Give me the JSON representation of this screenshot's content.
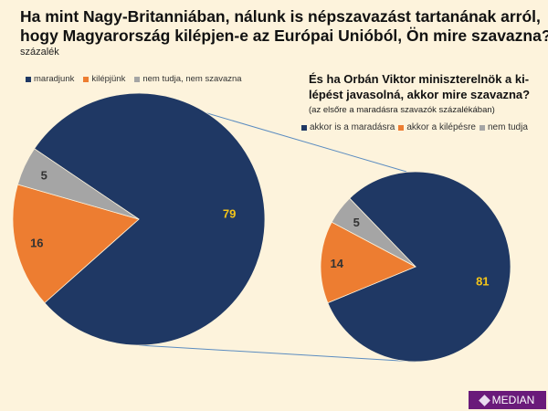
{
  "title_line1": "Ha mint Nagy-Britanniában, nálunk is népszavazást tartanának arról,",
  "title_line2": "hogy Magyarország kilépjen-e az Európai Unióból, Ön mire szavazna?",
  "subtitle": "százalék",
  "logo": "MEDIAN",
  "chart_data": [
    {
      "type": "pie",
      "title": "Ha mint Nagy-Britanniában, nálunk is népszavazást tartanának arról, hogy Magyarország kilépjen-e az Európai Unióból, Ön mire szavazna?",
      "unit": "százalék",
      "categories": [
        "maradjunk",
        "kilépjünk",
        "nem tudja, nem szavazna"
      ],
      "values": [
        79,
        16,
        5
      ],
      "colors": [
        "#1f3864",
        "#ed7d31",
        "#a5a5a5"
      ],
      "label_colors": [
        "#f5c518",
        "#333333",
        "#333333"
      ],
      "legend": "top-left"
    },
    {
      "type": "pie",
      "title_line1": "És ha Orbán Viktor miniszterelnök a ki-",
      "title_line2": "lépést javasolná, akkor mire szavazna?",
      "note": "(az elsőre a maradásra szavazók százalékában)",
      "categories": [
        "akkor is a maradásra",
        "akkor a kilépésre",
        "nem tudja"
      ],
      "values": [
        81,
        14,
        5
      ],
      "colors": [
        "#1f3864",
        "#ed7d31",
        "#a5a5a5"
      ],
      "label_colors": [
        "#f5c518",
        "#333333",
        "#333333"
      ],
      "legend": "top-right"
    }
  ]
}
